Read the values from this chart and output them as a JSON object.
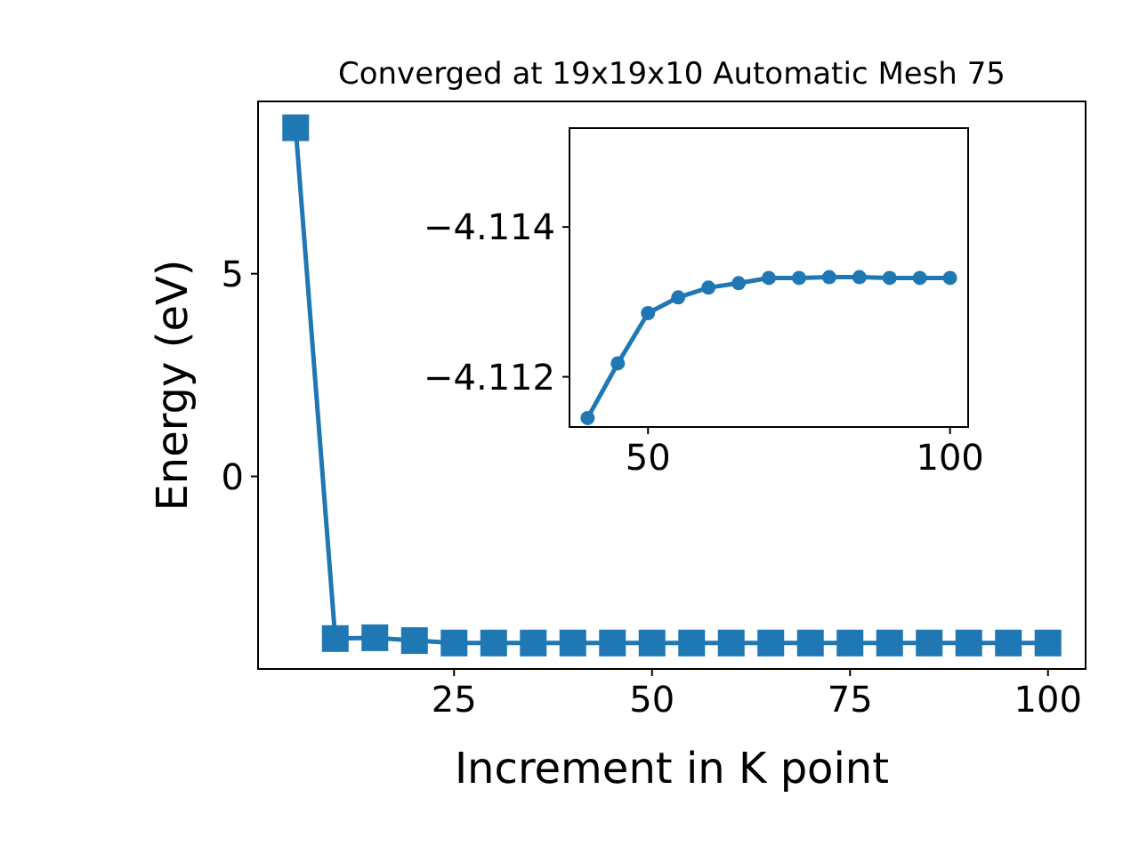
{
  "chart_data": [
    {
      "type": "line",
      "title": "Converged at 19x19x10 Automatic Mesh 75",
      "xlabel": "Increment in K point",
      "ylabel": "Energy (eV)",
      "x": [
        5,
        10,
        15,
        20,
        25,
        30,
        35,
        40,
        45,
        50,
        55,
        60,
        65,
        70,
        75,
        80,
        85,
        90,
        95,
        100
      ],
      "values": [
        8.6,
        -4.0,
        -3.98,
        -4.05,
        -4.11,
        -4.11,
        -4.11,
        -4.11,
        -4.11,
        -4.11,
        -4.11,
        -4.11,
        -4.11,
        -4.11,
        -4.11,
        -4.11,
        -4.11,
        -4.11,
        -4.11,
        -4.11
      ],
      "color": "#1f77b4",
      "marker": "square",
      "line_style": "solid",
      "xlim": [
        0.25,
        104.75
      ],
      "ylim": [
        -4.75,
        9.25
      ],
      "xticks": [
        25,
        50,
        75,
        100
      ],
      "yticks": [
        0,
        5
      ]
    },
    {
      "type": "line",
      "x": [
        40,
        45,
        50,
        55,
        60,
        65,
        70,
        75,
        80,
        85,
        90,
        95,
        100
      ],
      "values": [
        -4.11145,
        -4.11218,
        -4.11285,
        -4.11306,
        -4.11319,
        -4.11325,
        -4.11332,
        -4.11332,
        -4.11333,
        -4.11333,
        -4.11332,
        -4.11332,
        -4.11332
      ],
      "color": "#1f77b4",
      "marker": "circle",
      "line_style": "solid",
      "xlim": [
        37,
        103
      ],
      "ylim": [
        -4.11133,
        -4.11532
      ],
      "xticks": [
        50,
        100
      ],
      "yticks": [
        {
          "value": -4.114,
          "label": "−4.114"
        },
        {
          "value": -4.112,
          "label": "−4.112"
        }
      ]
    }
  ]
}
